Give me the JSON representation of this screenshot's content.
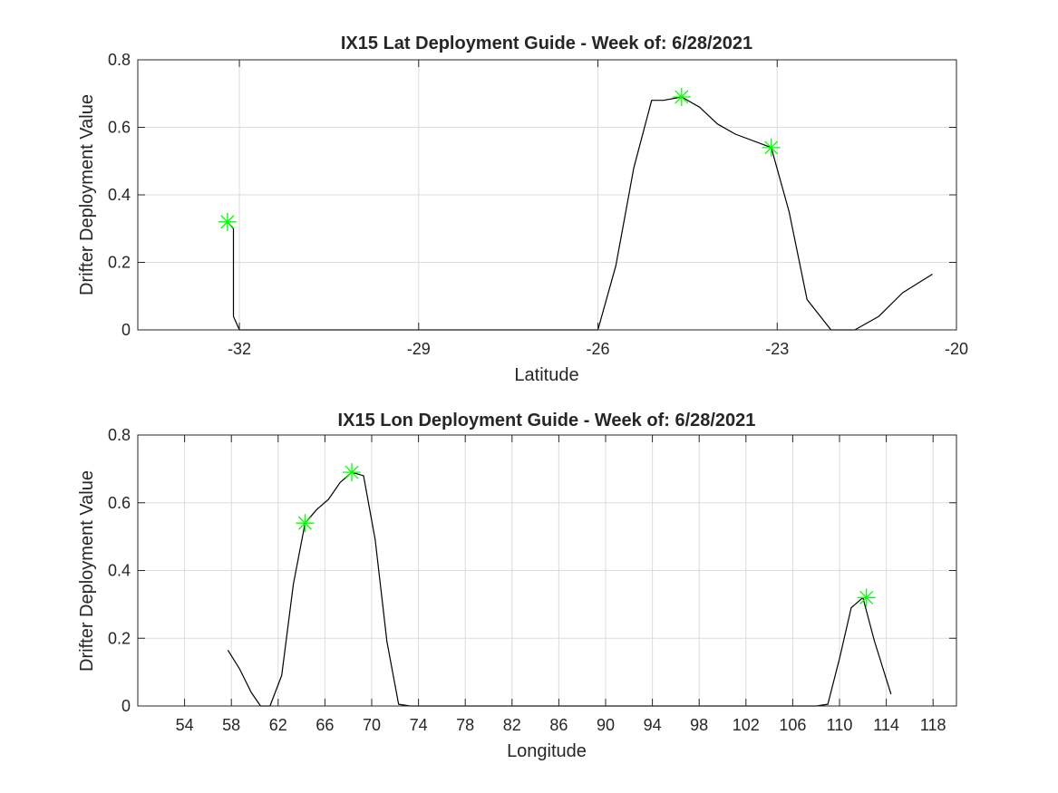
{
  "chart_data": [
    {
      "type": "line",
      "title": "IX15 Lat Deployment Guide - Week of: 6/28/2021",
      "xlabel": "Latitude",
      "ylabel": "Drifter Deployment Value",
      "xlim": [
        -33.7,
        -20
      ],
      "ylim": [
        0,
        0.8
      ],
      "xticks": [
        -32,
        -29,
        -26,
        -23,
        -20
      ],
      "yticks": [
        0,
        0.2,
        0.4,
        0.6,
        0.8
      ],
      "grid": true,
      "colors": {
        "line": "#000000",
        "marker": "#00ff00"
      },
      "series": [
        {
          "x": [
            -32.2,
            -32.1,
            -32.1,
            -32.0,
            -31.0,
            -30.0,
            -29.0,
            -28.0,
            -27.0,
            -26.3,
            -26.0,
            -25.7,
            -25.4,
            -25.1,
            -24.9,
            -24.6,
            -24.3,
            -24.0,
            -23.7,
            -23.1,
            -22.8,
            -22.5,
            -22.1,
            -21.7,
            -21.3,
            -20.9,
            -20.4
          ],
          "y": [
            0.32,
            0.3,
            0.04,
            0.0,
            0.0,
            0.0,
            0.0,
            0.0,
            0.0,
            0.0,
            0.0,
            0.19,
            0.48,
            0.68,
            0.68,
            0.69,
            0.66,
            0.61,
            0.58,
            0.54,
            0.35,
            0.09,
            0.0,
            0.0,
            0.04,
            0.11,
            0.165
          ]
        }
      ],
      "markers": {
        "style": "asterisk",
        "x": [
          -32.2,
          -24.6,
          -23.1
        ],
        "y": [
          0.32,
          0.69,
          0.54
        ]
      }
    },
    {
      "type": "line",
      "title": "IX15 Lon Deployment Guide - Week of: 6/28/2021",
      "xlabel": "Longitude",
      "ylabel": "Drifter Deployment Value",
      "xlim": [
        50,
        120
      ],
      "ylim": [
        0,
        0.8
      ],
      "xticks": [
        54,
        58,
        62,
        66,
        70,
        74,
        78,
        82,
        86,
        90,
        94,
        98,
        102,
        106,
        110,
        114,
        118
      ],
      "yticks": [
        0,
        0.2,
        0.4,
        0.6,
        0.8
      ],
      "grid": true,
      "colors": {
        "line": "#000000",
        "marker": "#00ff00"
      },
      "series": [
        {
          "x": [
            57.7,
            58.7,
            59.7,
            60.5,
            61.3,
            62.3,
            63.3,
            64.3,
            65.3,
            66.3,
            67.3,
            68.3,
            69.3,
            70.3,
            71.3,
            72.3,
            73.3,
            80,
            90,
            100,
            108,
            109,
            110,
            111,
            112,
            113,
            114.4
          ],
          "y": [
            0.165,
            0.11,
            0.04,
            0.0,
            0.0,
            0.09,
            0.36,
            0.54,
            0.58,
            0.61,
            0.66,
            0.69,
            0.68,
            0.49,
            0.19,
            0.005,
            0.0,
            0.0,
            0.0,
            0.0,
            0.0,
            0.005,
            0.14,
            0.29,
            0.32,
            0.19,
            0.035
          ]
        }
      ],
      "markers": {
        "style": "asterisk",
        "x": [
          64.3,
          68.3,
          112.3
        ],
        "y": [
          0.54,
          0.69,
          0.32
        ]
      }
    }
  ]
}
